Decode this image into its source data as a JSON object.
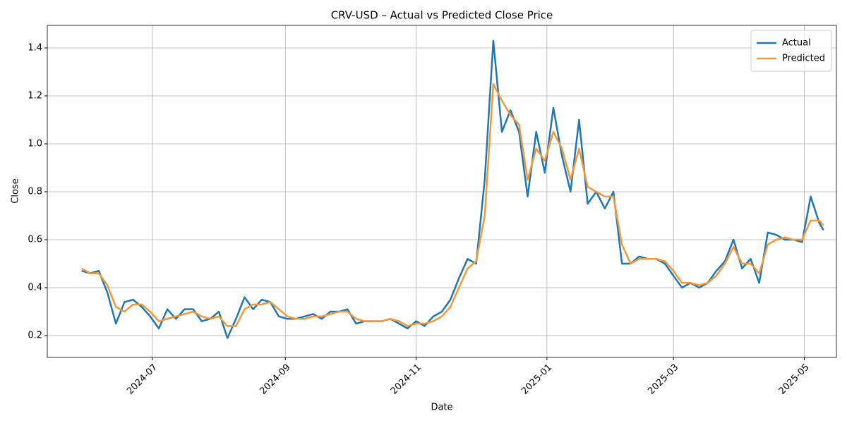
{
  "chart_data": {
    "type": "line",
    "title": "CRV-USD – Actual vs Predicted Close Price",
    "x_label": "Date",
    "y_label": "Close",
    "x": [
      "2024-05-29",
      "2024-06-02",
      "2024-06-06",
      "2024-06-10",
      "2024-06-14",
      "2024-06-18",
      "2024-06-22",
      "2024-06-26",
      "2024-06-30",
      "2024-07-04",
      "2024-07-08",
      "2024-07-12",
      "2024-07-16",
      "2024-07-20",
      "2024-07-24",
      "2024-07-28",
      "2024-08-01",
      "2024-08-05",
      "2024-08-09",
      "2024-08-13",
      "2024-08-17",
      "2024-08-21",
      "2024-08-25",
      "2024-08-29",
      "2024-09-02",
      "2024-09-06",
      "2024-09-10",
      "2024-09-14",
      "2024-09-18",
      "2024-09-22",
      "2024-09-26",
      "2024-09-30",
      "2024-10-04",
      "2024-10-08",
      "2024-10-12",
      "2024-10-16",
      "2024-10-20",
      "2024-10-24",
      "2024-10-28",
      "2024-11-01",
      "2024-11-05",
      "2024-11-09",
      "2024-11-13",
      "2024-11-17",
      "2024-11-21",
      "2024-11-25",
      "2024-11-29",
      "2024-12-03",
      "2024-12-07",
      "2024-12-11",
      "2024-12-15",
      "2024-12-19",
      "2024-12-23",
      "2024-12-27",
      "2024-12-31",
      "2025-01-04",
      "2025-01-08",
      "2025-01-12",
      "2025-01-16",
      "2025-01-20",
      "2025-01-24",
      "2025-01-28",
      "2025-02-01",
      "2025-02-05",
      "2025-02-09",
      "2025-02-13",
      "2025-02-17",
      "2025-02-21",
      "2025-02-25",
      "2025-03-01",
      "2025-03-05",
      "2025-03-09",
      "2025-03-13",
      "2025-03-17",
      "2025-03-21",
      "2025-03-25",
      "2025-03-29",
      "2025-04-02",
      "2025-04-06",
      "2025-04-10",
      "2025-04-14",
      "2025-04-18",
      "2025-04-22",
      "2025-04-26",
      "2025-04-30",
      "2025-05-04",
      "2025-05-08",
      "2025-05-10"
    ],
    "series": [
      {
        "name": "Actual",
        "color": "#1f77b4",
        "values": [
          0.47,
          0.46,
          0.47,
          0.38,
          0.25,
          0.34,
          0.35,
          0.32,
          0.28,
          0.23,
          0.31,
          0.27,
          0.31,
          0.31,
          0.26,
          0.27,
          0.3,
          0.19,
          0.27,
          0.36,
          0.31,
          0.35,
          0.34,
          0.28,
          0.27,
          0.27,
          0.28,
          0.29,
          0.27,
          0.3,
          0.3,
          0.31,
          0.25,
          0.26,
          0.26,
          0.26,
          0.27,
          0.25,
          0.23,
          0.26,
          0.24,
          0.28,
          0.3,
          0.35,
          0.44,
          0.52,
          0.5,
          0.85,
          1.43,
          1.05,
          1.14,
          1.05,
          0.78,
          1.05,
          0.88,
          1.15,
          0.95,
          0.8,
          1.1,
          0.75,
          0.8,
          0.73,
          0.8,
          0.5,
          0.5,
          0.53,
          0.52,
          0.52,
          0.5,
          0.45,
          0.4,
          0.42,
          0.4,
          0.42,
          0.47,
          0.51,
          0.6,
          0.48,
          0.52,
          0.42,
          0.63,
          0.62,
          0.6,
          0.6,
          0.59,
          0.78,
          0.67,
          0.64
        ]
      },
      {
        "name": "Predicted",
        "color": "#f5973a",
        "values": [
          0.48,
          0.46,
          0.46,
          0.41,
          0.32,
          0.3,
          0.33,
          0.33,
          0.3,
          0.26,
          0.27,
          0.28,
          0.29,
          0.3,
          0.28,
          0.27,
          0.28,
          0.24,
          0.24,
          0.31,
          0.33,
          0.33,
          0.34,
          0.31,
          0.28,
          0.27,
          0.27,
          0.28,
          0.28,
          0.29,
          0.3,
          0.3,
          0.27,
          0.26,
          0.26,
          0.26,
          0.27,
          0.26,
          0.24,
          0.25,
          0.25,
          0.26,
          0.28,
          0.32,
          0.4,
          0.48,
          0.51,
          0.7,
          1.25,
          1.18,
          1.12,
          1.08,
          0.85,
          0.98,
          0.93,
          1.05,
          0.98,
          0.85,
          0.98,
          0.82,
          0.8,
          0.78,
          0.78,
          0.58,
          0.5,
          0.52,
          0.52,
          0.52,
          0.51,
          0.47,
          0.42,
          0.42,
          0.41,
          0.42,
          0.45,
          0.5,
          0.57,
          0.5,
          0.5,
          0.46,
          0.58,
          0.6,
          0.61,
          0.6,
          0.6,
          0.68,
          0.68,
          0.66
        ]
      }
    ],
    "xlim": [
      "2024-05-13",
      "2025-05-16"
    ],
    "xticks": [
      {
        "value": "2024-07-01",
        "label": "2024-07"
      },
      {
        "value": "2024-09-01",
        "label": "2024-09"
      },
      {
        "value": "2024-11-01",
        "label": "2024-11"
      },
      {
        "value": "2025-01-01",
        "label": "2025-01"
      },
      {
        "value": "2025-03-01",
        "label": "2025-03"
      },
      {
        "value": "2025-05-01",
        "label": "2025-05"
      }
    ],
    "ylim": [
      0.109,
      1.494
    ],
    "yticks": [
      0.2,
      0.4,
      0.6,
      0.8,
      {
        "value": 1,
        "label": "1.0"
      },
      1.2,
      1.4
    ],
    "grid": true,
    "legend": "upper right"
  }
}
